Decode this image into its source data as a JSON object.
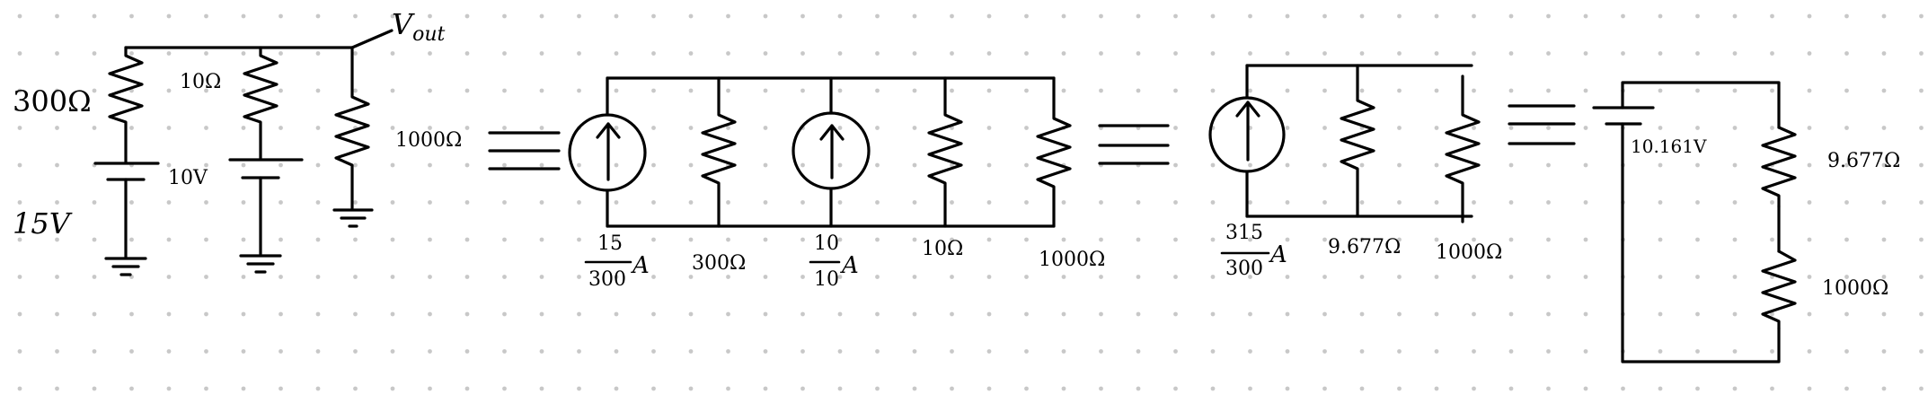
{
  "colors": {
    "wire": "#000000",
    "grid_dot": "#c8c8c8",
    "background": "#ffffff"
  },
  "circuit1": {
    "vout_V": "V",
    "vout_sub": "out",
    "r1": "300Ω",
    "r2": "10Ω",
    "r3": "1000Ω",
    "v1": "15V",
    "v2": "10V"
  },
  "equals": "=",
  "circuit2": {
    "i1_num": "15",
    "i1_den": "300",
    "i1_unit": "A",
    "r1": "300Ω",
    "i2_num": "10",
    "i2_den": "10",
    "i2_unit": "A",
    "r2": "10Ω",
    "r3": "1000Ω"
  },
  "circuit3": {
    "i_num": "315",
    "i_den": "300",
    "i_unit": "A",
    "r1": "9.677Ω",
    "r2": "1000Ω"
  },
  "circuit4": {
    "v": "10.161V",
    "r1": "9.677Ω",
    "r2": "1000Ω"
  }
}
